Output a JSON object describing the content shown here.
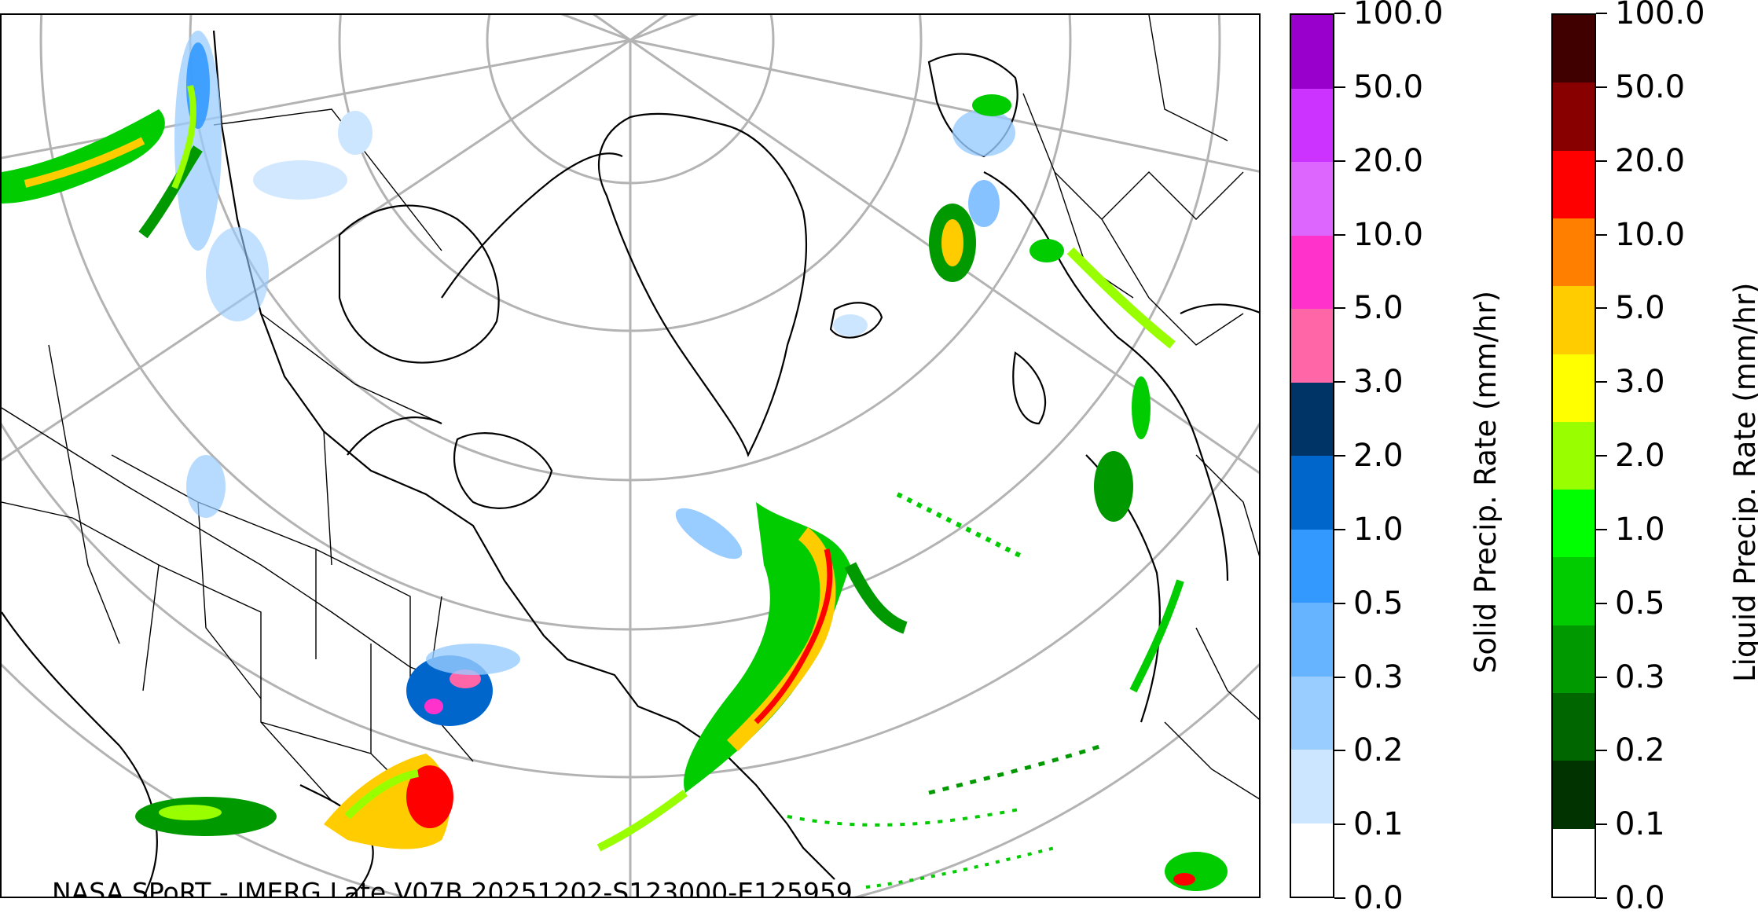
{
  "map": {
    "caption": "NASA SPoRT - IMERG Late V07B 20251202-S123000-E125959"
  },
  "colorbars": [
    {
      "id": "solid",
      "title": "Solid Precip. Rate (mm/hr)",
      "ticks": [
        "0.0",
        "0.1",
        "0.2",
        "0.3",
        "0.5",
        "1.0",
        "2.0",
        "3.0",
        "5.0",
        "10.0",
        "20.0",
        "50.0",
        "100.0"
      ],
      "colors": [
        "#ffffff",
        "#cce6ff",
        "#99ccff",
        "#66b3ff",
        "#3399ff",
        "#0066cc",
        "#003366",
        "#ff66a8",
        "#ff33cc",
        "#dd66ff",
        "#cc33ff",
        "#9900cc"
      ]
    },
    {
      "id": "liquid",
      "title": "Liquid Precip. Rate (mm/hr)",
      "ticks": [
        "0.0",
        "0.1",
        "0.2",
        "0.3",
        "0.5",
        "1.0",
        "2.0",
        "3.0",
        "5.0",
        "10.0",
        "20.0",
        "50.0",
        "100.0"
      ],
      "colors": [
        "#ffffff",
        "#003300",
        "#006600",
        "#009900",
        "#00cc00",
        "#00ff00",
        "#99ff00",
        "#ffff00",
        "#ffcc00",
        "#ff8000",
        "#ff0000",
        "#880000",
        "#400000"
      ]
    }
  ]
}
